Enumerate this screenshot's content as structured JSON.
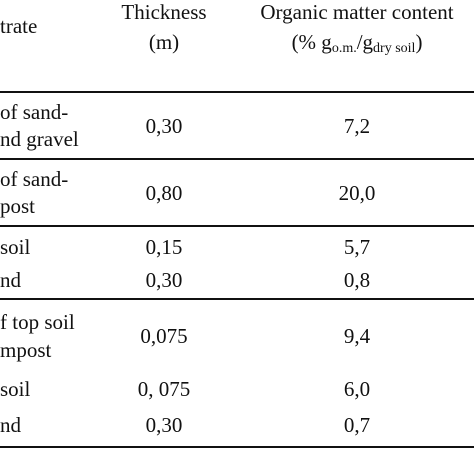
{
  "header": {
    "substrate_fragment": "trate",
    "thickness_line1": "Thickness",
    "thickness_line2": "(m)",
    "om_line1": "Organic matter content",
    "om_prefix": "(% g",
    "om_sub1": "o.m.",
    "om_slash": "/g",
    "om_sub2": "dry soil",
    "om_suffix": ")"
  },
  "rows": [
    {
      "label": [
        "of sand-",
        "nd gravel"
      ],
      "thickness": "0,30",
      "om": "7,2"
    },
    {
      "label": [
        "of sand-",
        "post"
      ],
      "thickness": "0,80",
      "om": "20,0"
    },
    {
      "label": [
        "soil"
      ],
      "thickness": "0,15",
      "om": "5,7"
    },
    {
      "label": [
        "nd"
      ],
      "thickness": "0,30",
      "om": "0,8"
    },
    {
      "label": [
        "f top soil",
        "mpost"
      ],
      "thickness": "0,075",
      "om": "9,4"
    },
    {
      "label": [
        "soil"
      ],
      "thickness": "0, 075",
      "om": "6,0"
    },
    {
      "label": [
        "nd"
      ],
      "thickness": "0,30",
      "om": "0,7"
    }
  ]
}
